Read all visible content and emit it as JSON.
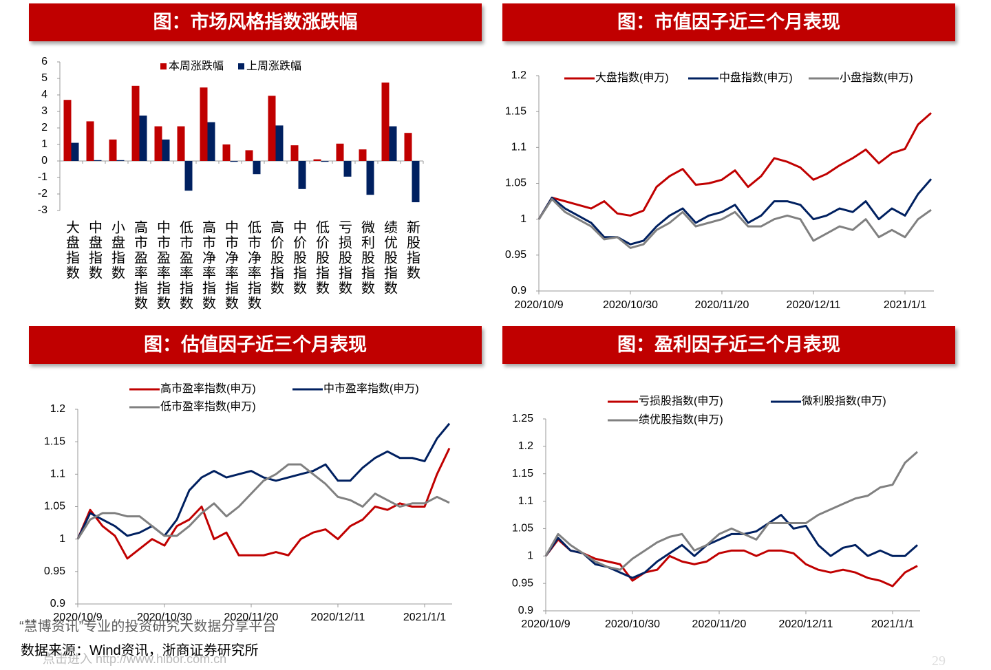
{
  "chart_data": [
    {
      "type": "bar",
      "title": "图：市场风格指数涨跌幅",
      "categories": [
        "大盘指数",
        "中盘指数",
        "小盘指数",
        "高市盈率指数",
        "中市盈率指数",
        "低市盈率指数",
        "高市净率指数",
        "中市净率指数",
        "低市净率指数",
        "高价股指数",
        "中价股指数",
        "低价股指数",
        "亏损股指数",
        "微利股指数",
        "绩优股指数",
        "新股指数"
      ],
      "series": [
        {
          "name": "本周涨跌幅",
          "color": "#c00000",
          "values": [
            3.7,
            2.4,
            1.3,
            4.55,
            2.1,
            2.1,
            4.45,
            1.0,
            0.65,
            3.95,
            0.95,
            0.1,
            1.05,
            0.7,
            4.75,
            1.7
          ]
        },
        {
          "name": "上周涨跌幅",
          "color": "#002060",
          "values": [
            1.1,
            0.05,
            0.05,
            2.75,
            1.3,
            -1.8,
            2.35,
            -0.05,
            -0.8,
            2.15,
            -1.7,
            -0.05,
            -0.95,
            -2.05,
            2.1,
            -2.5
          ]
        }
      ],
      "ylim": [
        -3,
        6
      ],
      "yticks": [
        -3,
        -2,
        -1,
        0,
        1,
        2,
        3,
        4,
        5,
        6
      ]
    },
    {
      "type": "line",
      "title": "图：市值因子近三个月表现",
      "categories": [
        "2020/10/9",
        null,
        null,
        null,
        null,
        null,
        null,
        "2020/10/30",
        null,
        null,
        null,
        null,
        null,
        null,
        "2020/11/20",
        null,
        null,
        null,
        null,
        null,
        null,
        "2020/12/11",
        null,
        null,
        null,
        null,
        null,
        null,
        "2021/1/1",
        null,
        null
      ],
      "series": [
        {
          "name": "大盘指数(申万)",
          "color": "#c00000",
          "values": [
            1.0,
            1.03,
            1.025,
            1.02,
            1.015,
            1.025,
            1.008,
            1.005,
            1.012,
            1.045,
            1.06,
            1.07,
            1.048,
            1.05,
            1.055,
            1.068,
            1.045,
            1.06,
            1.085,
            1.08,
            1.072,
            1.055,
            1.063,
            1.075,
            1.085,
            1.097,
            1.078,
            1.092,
            1.098,
            1.132,
            1.148
          ]
        },
        {
          "name": "中盘指数(申万)",
          "color": "#002060",
          "values": [
            1.0,
            1.03,
            1.015,
            1.005,
            0.995,
            0.975,
            0.975,
            0.965,
            0.97,
            0.99,
            1.005,
            1.015,
            0.995,
            1.005,
            1.01,
            1.02,
            0.995,
            1.005,
            1.025,
            1.025,
            1.02,
            1.0,
            1.005,
            1.015,
            1.01,
            1.025,
            1.0,
            1.015,
            1.005,
            1.035,
            1.056
          ]
        },
        {
          "name": "小盘指数(申万)",
          "color": "#808080",
          "values": [
            1.0,
            1.028,
            1.01,
            1.0,
            0.99,
            0.972,
            0.975,
            0.96,
            0.965,
            0.985,
            0.995,
            1.01,
            0.99,
            0.995,
            1.0,
            1.01,
            0.99,
            0.99,
            1.0,
            1.005,
            1.0,
            0.97,
            0.98,
            0.99,
            0.985,
            1.0,
            0.975,
            0.985,
            0.975,
            1.0,
            1.013
          ]
        }
      ],
      "ylim": [
        0.9,
        1.2
      ],
      "yticks": [
        0.9,
        0.95,
        1,
        1.05,
        1.1,
        1.15,
        1.2
      ]
    },
    {
      "type": "line",
      "title": "图：估值因子近三个月表现",
      "categories": [
        "2020/10/9",
        null,
        null,
        null,
        null,
        null,
        null,
        "2020/10/30",
        null,
        null,
        null,
        null,
        null,
        null,
        "2020/11/20",
        null,
        null,
        null,
        null,
        null,
        null,
        "2020/12/11",
        null,
        null,
        null,
        null,
        null,
        null,
        "2021/1/1",
        null,
        null
      ],
      "series": [
        {
          "name": "高市盈率指数(申万)",
          "color": "#c00000",
          "values": [
            1.0,
            1.045,
            1.02,
            1.005,
            0.97,
            0.985,
            1.0,
            0.99,
            1.02,
            1.03,
            1.05,
            1.0,
            1.01,
            0.975,
            0.975,
            0.975,
            0.98,
            0.975,
            1.0,
            1.01,
            1.015,
            1.0,
            1.02,
            1.03,
            1.05,
            1.045,
            1.055,
            1.05,
            1.05,
            1.1,
            1.14
          ]
        },
        {
          "name": "中市盈率指数(申万)",
          "color": "#002060",
          "values": [
            1.0,
            1.04,
            1.03,
            1.02,
            1.005,
            1.01,
            1.02,
            1.005,
            1.03,
            1.075,
            1.095,
            1.105,
            1.095,
            1.1,
            1.105,
            1.095,
            1.09,
            1.095,
            1.1,
            1.105,
            1.115,
            1.09,
            1.09,
            1.11,
            1.125,
            1.135,
            1.125,
            1.125,
            1.12,
            1.155,
            1.178
          ]
        },
        {
          "name": "低市盈率指数(申万)",
          "color": "#808080",
          "values": [
            1.0,
            1.03,
            1.04,
            1.04,
            1.035,
            1.035,
            1.02,
            1.005,
            1.005,
            1.02,
            1.04,
            1.055,
            1.035,
            1.05,
            1.07,
            1.09,
            1.1,
            1.115,
            1.115,
            1.1,
            1.085,
            1.065,
            1.06,
            1.05,
            1.07,
            1.06,
            1.05,
            1.055,
            1.055,
            1.065,
            1.056
          ]
        }
      ],
      "ylim": [
        0.9,
        1.2
      ],
      "yticks": [
        0.9,
        0.95,
        1,
        1.05,
        1.1,
        1.15,
        1.2
      ]
    },
    {
      "type": "line",
      "title": "图：盈利因子近三个月表现",
      "categories": [
        "2020/10/9",
        null,
        null,
        null,
        null,
        null,
        null,
        "2020/10/30",
        null,
        null,
        null,
        null,
        null,
        null,
        "2020/11/20",
        null,
        null,
        null,
        null,
        null,
        null,
        "2020/12/11",
        null,
        null,
        null,
        null,
        null,
        null,
        "2021/1/1",
        null,
        null
      ],
      "series": [
        {
          "name": "亏损股指数(申万)",
          "color": "#c00000",
          "values": [
            1.0,
            1.03,
            1.01,
            1.005,
            0.995,
            0.99,
            0.985,
            0.955,
            0.97,
            0.975,
            1.0,
            0.99,
            0.985,
            0.99,
            1.005,
            1.01,
            1.01,
            1.0,
            1.01,
            1.01,
            1.005,
            0.985,
            0.975,
            0.97,
            0.975,
            0.97,
            0.96,
            0.955,
            0.945,
            0.97,
            0.982
          ]
        },
        {
          "name": "微利股指数(申万)",
          "color": "#002060",
          "values": [
            1.0,
            1.033,
            1.01,
            1.005,
            0.985,
            0.98,
            0.97,
            0.96,
            0.97,
            0.99,
            1.005,
            1.02,
            1.0,
            1.02,
            1.03,
            1.04,
            1.04,
            1.045,
            1.06,
            1.075,
            1.05,
            1.055,
            1.02,
            1.0,
            1.015,
            1.02,
            1.0,
            1.01,
            1.0,
            1.0,
            1.02
          ]
        },
        {
          "name": "绩优股指数(申万)",
          "color": "#808080",
          "values": [
            1.0,
            1.04,
            1.02,
            1.005,
            0.99,
            0.98,
            0.975,
            0.995,
            1.01,
            1.025,
            1.035,
            1.04,
            1.01,
            1.02,
            1.04,
            1.05,
            1.04,
            1.03,
            1.06,
            1.06,
            1.06,
            1.06,
            1.075,
            1.085,
            1.095,
            1.105,
            1.11,
            1.125,
            1.13,
            1.17,
            1.19
          ]
        }
      ],
      "ylim": [
        0.9,
        1.25
      ],
      "yticks": [
        0.9,
        0.95,
        1,
        1.05,
        1.1,
        1.15,
        1.2,
        1.25
      ]
    }
  ],
  "footer": {
    "watermark": "“慧博资讯”专业的投资研究大数据分享平台",
    "source": "数据来源：Wind资讯，浙商证券研究所",
    "link": "点击进入 http://www.hibor.com.cn",
    "page": "29"
  }
}
